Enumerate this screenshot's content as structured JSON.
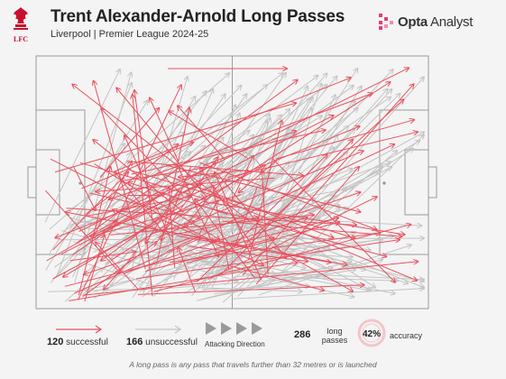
{
  "header": {
    "title": "Trent Alexander-Arnold Long Passes",
    "subtitle": "Liverpool | Premier League 2024-25",
    "club_badge_text": "LFC",
    "brand_name_bold": "Opta",
    "brand_name_rest": " Analyst"
  },
  "legend": {
    "successful_count": "120",
    "successful_label": "successful",
    "unsuccessful_count": "166",
    "unsuccessful_label": "unsuccessful",
    "direction_label": "Attacking Direction",
    "total_count": "286",
    "total_label": "long passes",
    "accuracy_value": "42%",
    "accuracy_label": "accuracy"
  },
  "footer": {
    "note": "A long pass is any pass that travels further than 32 metres or is launched"
  },
  "colors": {
    "successful": "#e8515e",
    "unsuccessful": "#c4c4c4",
    "pitch_line": "#9a9a9a",
    "club_red": "#c8102e",
    "brand_pink": "#e63b7a"
  },
  "chart_data": {
    "type": "pass-map",
    "attacking_direction": "right",
    "summary": {
      "successful": 120,
      "unsuccessful": 166,
      "total": 286,
      "accuracy_pct": 42
    }
  }
}
